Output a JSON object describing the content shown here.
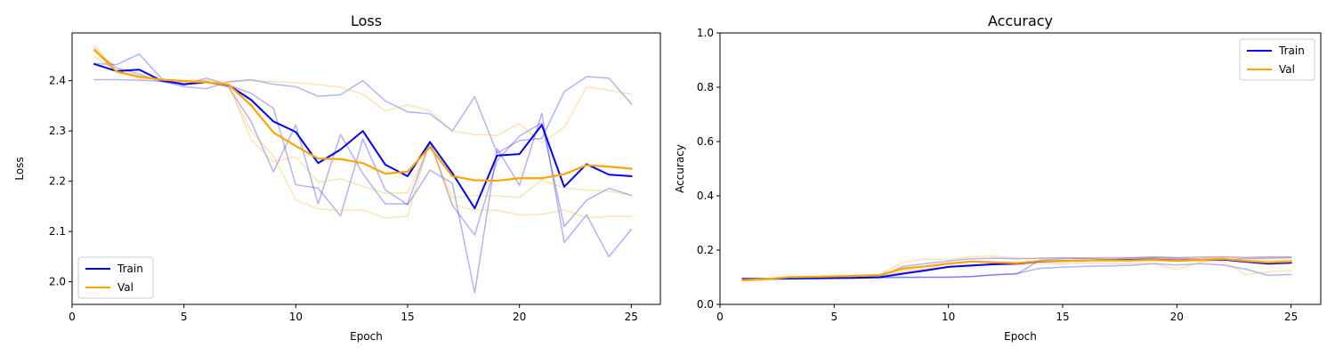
{
  "chart_data": [
    {
      "type": "line",
      "title": "Loss",
      "xlabel": "Epoch",
      "ylabel": "Loss",
      "xlim": [
        0,
        26.3
      ],
      "ylim": [
        1.955,
        2.495
      ],
      "xticks": [
        0,
        5,
        10,
        15,
        20,
        25
      ],
      "yticks": [
        2.0,
        2.1,
        2.2,
        2.3,
        2.4
      ],
      "ytick_format": 1,
      "legend": {
        "placement": "lower-left",
        "entries": [
          "Train",
          "Val"
        ]
      },
      "colors": {
        "train": "#0000ff",
        "val": "#ffa500"
      },
      "x": [
        1,
        2,
        3,
        4,
        5,
        6,
        7,
        8,
        9,
        10,
        11,
        12,
        13,
        14,
        15,
        16,
        17,
        18,
        19,
        20,
        21,
        22,
        23,
        24,
        25
      ],
      "series": [
        {
          "name": "Train",
          "color": "#0000ff",
          "width": 2,
          "opacity": 1,
          "values": [
            2.433,
            2.419,
            2.422,
            2.4,
            2.393,
            2.397,
            2.391,
            2.362,
            2.319,
            2.298,
            2.236,
            2.263,
            2.3,
            2.233,
            2.21,
            2.278,
            2.216,
            2.146,
            2.251,
            2.254,
            2.312,
            2.189,
            2.234,
            2.213,
            2.21
          ]
        },
        {
          "name": "Val",
          "color": "#ffa500",
          "width": 2.2,
          "opacity": 1,
          "values": [
            2.461,
            2.418,
            2.408,
            2.402,
            2.399,
            2.397,
            2.392,
            2.351,
            2.297,
            2.27,
            2.245,
            2.244,
            2.236,
            2.215,
            2.219,
            2.268,
            2.21,
            2.202,
            2.201,
            2.206,
            2.206,
            2.214,
            2.232,
            2.229,
            2.225
          ]
        },
        {
          "color": "#0000ff",
          "width": 1.5,
          "opacity": 0.3,
          "values": [
            2.402,
            2.402,
            2.401,
            2.399,
            2.388,
            2.384,
            2.398,
            2.402,
            2.393,
            2.388,
            2.369,
            2.372,
            2.4,
            2.36,
            2.338,
            2.334,
            2.3,
            2.368,
            2.256,
            2.281,
            2.285,
            2.378,
            2.408,
            2.405,
            2.354
          ]
        },
        {
          "color": "#0000ff",
          "width": 1.5,
          "opacity": 0.3,
          "values": [
            2.434,
            2.432,
            2.453,
            2.404,
            2.391,
            2.405,
            2.391,
            2.375,
            2.345,
            2.193,
            2.186,
            2.131,
            2.284,
            2.183,
            2.153,
            2.222,
            2.196,
            1.978,
            2.265,
            2.192,
            2.335,
            2.078,
            2.133,
            2.05,
            2.104
          ]
        },
        {
          "color": "#0000ff",
          "width": 1.5,
          "opacity": 0.3,
          "values": [
            2.46,
            2.425,
            2.413,
            2.398,
            2.398,
            2.399,
            2.387,
            2.319,
            2.219,
            2.312,
            2.155,
            2.293,
            2.215,
            2.155,
            2.155,
            2.278,
            2.152,
            2.093,
            2.241,
            2.29,
            2.316,
            2.11,
            2.162,
            2.186,
            2.172
          ]
        },
        {
          "color": "#ffa500",
          "width": 1.5,
          "opacity": 0.3,
          "values": [
            2.47,
            2.417,
            2.405,
            2.402,
            2.401,
            2.402,
            2.397,
            2.4,
            2.398,
            2.396,
            2.392,
            2.387,
            2.373,
            2.34,
            2.352,
            2.34,
            2.3,
            2.293,
            2.291,
            2.315,
            2.276,
            2.307,
            2.388,
            2.381,
            2.373
          ]
        },
        {
          "color": "#ffa500",
          "width": 1.5,
          "opacity": 0.3,
          "values": [
            2.465,
            2.417,
            2.408,
            2.402,
            2.4,
            2.398,
            2.393,
            2.283,
            2.238,
            2.249,
            2.198,
            2.205,
            2.19,
            2.176,
            2.177,
            2.273,
            2.167,
            2.172,
            2.171,
            2.168,
            2.203,
            2.186,
            2.183,
            2.18,
            2.172
          ]
        },
        {
          "color": "#ffa500",
          "width": 1.5,
          "opacity": 0.3,
          "values": [
            2.448,
            2.419,
            2.409,
            2.401,
            2.399,
            2.397,
            2.388,
            2.3,
            2.25,
            2.163,
            2.145,
            2.142,
            2.143,
            2.127,
            2.13,
            2.28,
            2.153,
            2.143,
            2.142,
            2.133,
            2.134,
            2.143,
            2.127,
            2.13,
            2.13
          ]
        }
      ]
    },
    {
      "type": "line",
      "title": "Accuracy",
      "xlabel": "Epoch",
      "ylabel": "Accuracy",
      "xlim": [
        0,
        26.3
      ],
      "ylim": [
        0.0,
        1.0
      ],
      "xticks": [
        0,
        5,
        10,
        15,
        20,
        25
      ],
      "yticks": [
        0.0,
        0.2,
        0.4,
        0.6,
        0.8,
        1.0
      ],
      "ytick_format": 1,
      "legend": {
        "placement": "upper-right",
        "entries": [
          "Train",
          "Val"
        ]
      },
      "colors": {
        "train": "#0000ff",
        "val": "#ffa500"
      },
      "x": [
        1,
        2,
        3,
        4,
        5,
        6,
        7,
        8,
        9,
        10,
        11,
        12,
        13,
        14,
        15,
        16,
        17,
        18,
        19,
        20,
        21,
        22,
        23,
        24,
        25
      ],
      "series": [
        {
          "name": "Train",
          "color": "#0000ff",
          "width": 2,
          "opacity": 1,
          "values": [
            0.094,
            0.094,
            0.095,
            0.096,
            0.097,
            0.098,
            0.1,
            0.113,
            0.125,
            0.138,
            0.143,
            0.148,
            0.15,
            0.158,
            0.16,
            0.162,
            0.163,
            0.164,
            0.165,
            0.162,
            0.163,
            0.165,
            0.157,
            0.15,
            0.153
          ]
        },
        {
          "name": "Val",
          "color": "#ffa500",
          "width": 2.2,
          "opacity": 1,
          "values": [
            0.09,
            0.093,
            0.1,
            0.101,
            0.103,
            0.105,
            0.108,
            0.132,
            0.14,
            0.15,
            0.158,
            0.155,
            0.152,
            0.16,
            0.16,
            0.162,
            0.162,
            0.162,
            0.164,
            0.16,
            0.163,
            0.168,
            0.16,
            0.155,
            0.158
          ]
        },
        {
          "color": "#0000ff",
          "width": 1.5,
          "opacity": 0.3,
          "values": [
            0.094,
            0.094,
            0.095,
            0.095,
            0.096,
            0.097,
            0.098,
            0.099,
            0.1,
            0.1,
            0.103,
            0.108,
            0.114,
            0.133,
            0.137,
            0.14,
            0.142,
            0.144,
            0.15,
            0.145,
            0.15,
            0.145,
            0.13,
            0.107,
            0.11
          ]
        },
        {
          "color": "#0000ff",
          "width": 1.5,
          "opacity": 0.3,
          "values": [
            0.095,
            0.095,
            0.096,
            0.097,
            0.098,
            0.099,
            0.102,
            0.14,
            0.15,
            0.16,
            0.168,
            0.17,
            0.168,
            0.17,
            0.172,
            0.17,
            0.172,
            0.172,
            0.175,
            0.172,
            0.174,
            0.175,
            0.173,
            0.175,
            0.175
          ]
        },
        {
          "color": "#0000ff",
          "width": 1.5,
          "opacity": 0.3,
          "values": [
            0.093,
            0.094,
            0.095,
            0.096,
            0.097,
            0.098,
            0.1,
            0.1,
            0.1,
            0.1,
            0.102,
            0.11,
            0.112,
            0.163,
            0.168,
            0.17,
            0.165,
            0.17,
            0.172,
            0.17,
            0.165,
            0.165,
            0.168,
            0.17,
            0.172
          ]
        },
        {
          "color": "#ffa500",
          "width": 1.5,
          "opacity": 0.3,
          "values": [
            0.086,
            0.09,
            0.102,
            0.104,
            0.106,
            0.108,
            0.11,
            0.155,
            0.167,
            0.165,
            0.176,
            0.178,
            0.17,
            0.17,
            0.17,
            0.17,
            0.168,
            0.17,
            0.172,
            0.17,
            0.168,
            0.176,
            0.171,
            0.174,
            0.174
          ]
        },
        {
          "color": "#ffa500",
          "width": 1.5,
          "opacity": 0.3,
          "values": [
            0.088,
            0.091,
            0.098,
            0.1,
            0.102,
            0.104,
            0.106,
            0.118,
            0.128,
            0.14,
            0.148,
            0.145,
            0.145,
            0.15,
            0.15,
            0.152,
            0.15,
            0.15,
            0.15,
            0.128,
            0.155,
            0.16,
            0.11,
            0.12,
            0.125
          ]
        },
        {
          "color": "#ffa500",
          "width": 1.5,
          "opacity": 0.3,
          "values": [
            0.087,
            0.092,
            0.1,
            0.102,
            0.104,
            0.106,
            0.108,
            0.125,
            0.13,
            0.15,
            0.16,
            0.15,
            0.152,
            0.16,
            0.16,
            0.162,
            0.166,
            0.166,
            0.17,
            0.17,
            0.17,
            0.168,
            0.162,
            0.164,
            0.164
          ]
        }
      ]
    }
  ]
}
